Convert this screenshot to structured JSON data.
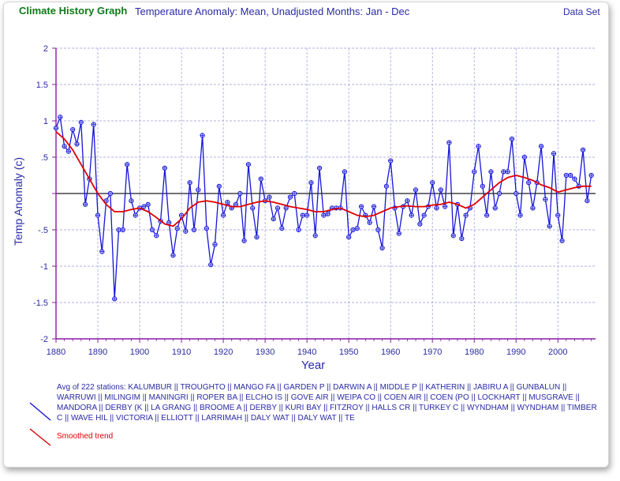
{
  "header": {
    "app_title": "Climate History Graph",
    "chart_title": "Temperature Anomaly: Mean, Unadjusted Months: Jan - Dec",
    "dataset_link": "Data Set"
  },
  "legend": {
    "stations_text": "Avg of 222 stations: KALUMBUR || TROUGHTO || MANGO FA || GARDEN P || DARWIN A || MIDDLE P || KATHERIN || JABIRU A || GUNBALUN || WARRUWI || MILINGIM || MANINGRI || ROPER BA || ELCHO IS || GOVE AIR || WEIPA CO || COEN AIR || COEN (PO || LOCKHART || MUSGRAVE || MANDORA || DERBY (K || LA GRANG || BROOME A || DERBY || KURI BAY || FITZROY || HALLS CR || TURKEY C || WYNDHAM || WYNDHAM || TIMBER C || WAVE HIL || VICTORIA || ELLIOTT || LARRIMAH || DALY WAT || DALY WAT || TE",
    "smoothed_label": "Smoothed trend"
  },
  "colors": {
    "series": "#1515d8",
    "trend": "#e00000",
    "axis": "#8a1aa3",
    "grid": "#9898d8",
    "zero": "#444444"
  },
  "chart_data": {
    "type": "line",
    "title": "Temperature Anomaly: Mean, Unadjusted Months: Jan - Dec",
    "xlabel": "Year",
    "ylabel": "Temp Anomaly (c)",
    "xlim": [
      1880,
      2009
    ],
    "ylim": [
      -2,
      2
    ],
    "xticks": [
      1880,
      1890,
      1900,
      1910,
      1920,
      1930,
      1940,
      1950,
      1960,
      1970,
      1980,
      1990,
      2000
    ],
    "yticks": [
      2,
      1.5,
      1,
      0.5,
      0,
      -0.5,
      -1,
      -1.5,
      -2
    ],
    "ytick_labels": [
      "2",
      "1.5",
      "1",
      ".5",
      "",
      "-.5",
      "-1",
      "-1.5",
      "-2"
    ],
    "grid": true,
    "series": [
      {
        "name": "Avg of 222 stations",
        "x": [
          1880,
          1881,
          1882,
          1883,
          1884,
          1885,
          1886,
          1887,
          1888,
          1889,
          1890,
          1891,
          1892,
          1893,
          1894,
          1895,
          1896,
          1897,
          1898,
          1899,
          1900,
          1901,
          1902,
          1903,
          1904,
          1905,
          1906,
          1907,
          1908,
          1909,
          1910,
          1911,
          1912,
          1913,
          1914,
          1915,
          1916,
          1917,
          1918,
          1919,
          1920,
          1921,
          1922,
          1923,
          1924,
          1925,
          1926,
          1927,
          1928,
          1929,
          1930,
          1931,
          1932,
          1933,
          1934,
          1935,
          1936,
          1937,
          1938,
          1939,
          1940,
          1941,
          1942,
          1943,
          1944,
          1945,
          1946,
          1947,
          1948,
          1949,
          1950,
          1951,
          1952,
          1953,
          1954,
          1955,
          1956,
          1957,
          1958,
          1959,
          1960,
          1961,
          1962,
          1963,
          1964,
          1965,
          1966,
          1967,
          1968,
          1969,
          1970,
          1971,
          1972,
          1973,
          1974,
          1975,
          1976,
          1977,
          1978,
          1979,
          1980,
          1981,
          1982,
          1983,
          1984,
          1985,
          1986,
          1987,
          1988,
          1989,
          1990,
          1991,
          1992,
          1993,
          1994,
          1995,
          1996,
          1997,
          1998,
          1999,
          2000,
          2001,
          2002,
          2003,
          2004,
          2005,
          2006,
          2007,
          2008
        ],
        "values": [
          0.9,
          1.05,
          0.65,
          0.58,
          0.88,
          0.68,
          0.98,
          -0.15,
          0.2,
          0.95,
          -0.3,
          -0.8,
          -0.1,
          0.0,
          -1.45,
          -0.5,
          -0.5,
          0.4,
          -0.1,
          -0.3,
          -0.2,
          -0.18,
          -0.15,
          -0.5,
          -0.58,
          -0.38,
          0.35,
          -0.4,
          -0.85,
          -0.48,
          -0.3,
          -0.52,
          0.15,
          -0.5,
          0.05,
          0.8,
          -0.48,
          -0.98,
          -0.7,
          0.1,
          -0.3,
          -0.12,
          -0.2,
          -0.15,
          0.0,
          -0.65,
          0.4,
          -0.2,
          -0.6,
          0.2,
          -0.1,
          -0.05,
          -0.35,
          -0.2,
          -0.48,
          -0.2,
          -0.05,
          0.0,
          -0.5,
          -0.3,
          -0.3,
          0.15,
          -0.58,
          0.35,
          -0.3,
          -0.28,
          -0.2,
          -0.2,
          -0.2,
          0.3,
          -0.6,
          -0.5,
          -0.48,
          -0.18,
          -0.3,
          -0.4,
          -0.18,
          -0.5,
          -0.75,
          0.1,
          0.45,
          -0.2,
          -0.55,
          -0.18,
          -0.1,
          -0.3,
          0.05,
          -0.42,
          -0.3,
          -0.18,
          0.15,
          -0.2,
          0.05,
          -0.18,
          0.7,
          -0.58,
          -0.15,
          -0.62,
          -0.3,
          -0.2,
          0.3,
          0.65,
          0.1,
          -0.3,
          0.3,
          -0.2,
          0.0,
          0.3,
          0.3,
          0.75,
          0.0,
          -0.3,
          0.5,
          0.15,
          -0.2,
          0.15,
          0.65,
          -0.08,
          -0.45,
          0.55,
          -0.3,
          -0.65,
          0.25,
          0.25,
          0.2,
          0.1,
          0.6,
          -0.1,
          0.25
        ]
      },
      {
        "name": "Smoothed trend",
        "x": [
          1880,
          1882,
          1884,
          1886,
          1888,
          1890,
          1892,
          1894,
          1896,
          1898,
          1900,
          1902,
          1904,
          1906,
          1908,
          1910,
          1912,
          1914,
          1916,
          1918,
          1920,
          1922,
          1924,
          1926,
          1928,
          1930,
          1932,
          1934,
          1936,
          1938,
          1940,
          1942,
          1944,
          1946,
          1948,
          1950,
          1952,
          1954,
          1956,
          1958,
          1960,
          1962,
          1964,
          1966,
          1968,
          1970,
          1972,
          1974,
          1976,
          1978,
          1980,
          1982,
          1984,
          1986,
          1988,
          1990,
          1992,
          1994,
          1996,
          1998,
          2000,
          2002,
          2004,
          2006,
          2008
        ],
        "values": [
          0.85,
          0.75,
          0.6,
          0.4,
          0.2,
          0.0,
          -0.15,
          -0.25,
          -0.25,
          -0.22,
          -0.2,
          -0.25,
          -0.33,
          -0.42,
          -0.45,
          -0.35,
          -0.2,
          -0.12,
          -0.1,
          -0.12,
          -0.15,
          -0.18,
          -0.18,
          -0.15,
          -0.12,
          -0.1,
          -0.12,
          -0.15,
          -0.18,
          -0.2,
          -0.22,
          -0.25,
          -0.25,
          -0.22,
          -0.2,
          -0.25,
          -0.3,
          -0.32,
          -0.3,
          -0.25,
          -0.2,
          -0.18,
          -0.17,
          -0.18,
          -0.18,
          -0.16,
          -0.15,
          -0.12,
          -0.15,
          -0.2,
          -0.15,
          -0.05,
          0.05,
          0.15,
          0.22,
          0.25,
          0.22,
          0.18,
          0.12,
          0.08,
          0.02,
          0.05,
          0.08,
          0.1,
          0.1
        ]
      }
    ]
  }
}
